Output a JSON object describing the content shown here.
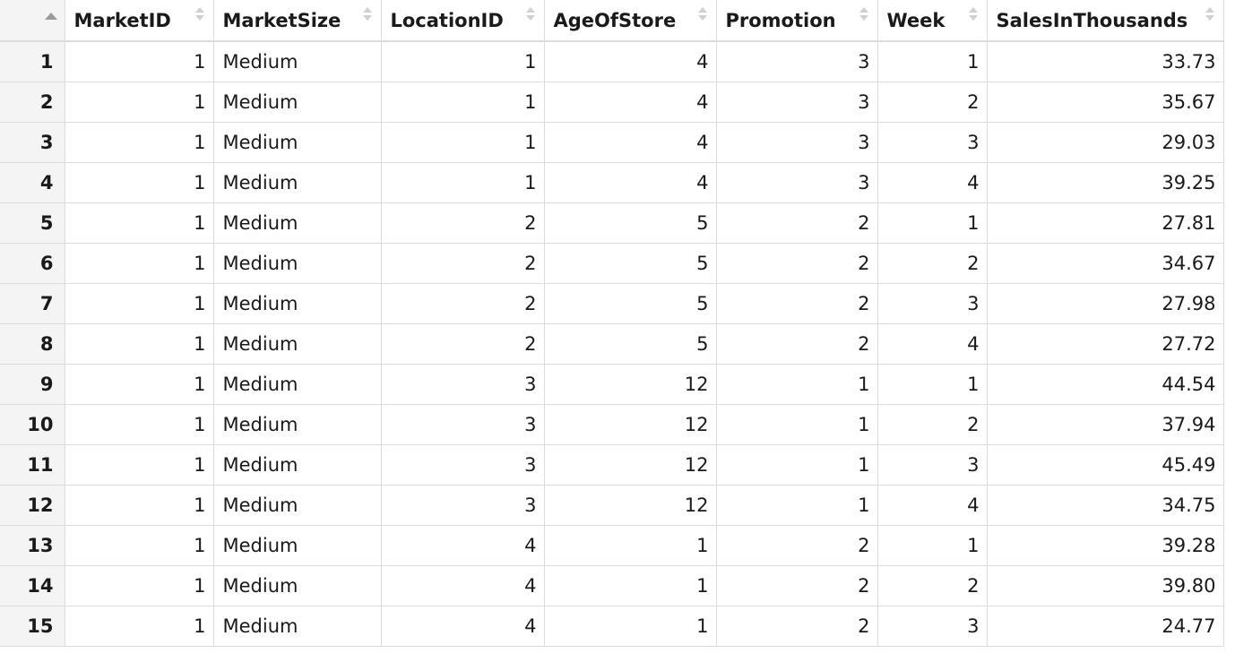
{
  "table": {
    "columns": [
      "MarketID",
      "MarketSize",
      "LocationID",
      "AgeOfStore",
      "Promotion",
      "Week",
      "SalesInThousands"
    ],
    "rows": [
      {
        "index": "1",
        "cells": [
          "1",
          "Medium",
          "1",
          "4",
          "3",
          "1",
          "33.73"
        ]
      },
      {
        "index": "2",
        "cells": [
          "1",
          "Medium",
          "1",
          "4",
          "3",
          "2",
          "35.67"
        ]
      },
      {
        "index": "3",
        "cells": [
          "1",
          "Medium",
          "1",
          "4",
          "3",
          "3",
          "29.03"
        ]
      },
      {
        "index": "4",
        "cells": [
          "1",
          "Medium",
          "1",
          "4",
          "3",
          "4",
          "39.25"
        ]
      },
      {
        "index": "5",
        "cells": [
          "1",
          "Medium",
          "2",
          "5",
          "2",
          "1",
          "27.81"
        ]
      },
      {
        "index": "6",
        "cells": [
          "1",
          "Medium",
          "2",
          "5",
          "2",
          "2",
          "34.67"
        ]
      },
      {
        "index": "7",
        "cells": [
          "1",
          "Medium",
          "2",
          "5",
          "2",
          "3",
          "27.98"
        ]
      },
      {
        "index": "8",
        "cells": [
          "1",
          "Medium",
          "2",
          "5",
          "2",
          "4",
          "27.72"
        ]
      },
      {
        "index": "9",
        "cells": [
          "1",
          "Medium",
          "3",
          "12",
          "1",
          "1",
          "44.54"
        ]
      },
      {
        "index": "10",
        "cells": [
          "1",
          "Medium",
          "3",
          "12",
          "1",
          "2",
          "37.94"
        ]
      },
      {
        "index": "11",
        "cells": [
          "1",
          "Medium",
          "3",
          "12",
          "1",
          "3",
          "45.49"
        ]
      },
      {
        "index": "12",
        "cells": [
          "1",
          "Medium",
          "3",
          "12",
          "1",
          "4",
          "34.75"
        ]
      },
      {
        "index": "13",
        "cells": [
          "1",
          "Medium",
          "4",
          "1",
          "2",
          "1",
          "39.28"
        ]
      },
      {
        "index": "14",
        "cells": [
          "1",
          "Medium",
          "4",
          "1",
          "2",
          "2",
          "39.80"
        ]
      },
      {
        "index": "15",
        "cells": [
          "1",
          "Medium",
          "4",
          "1",
          "2",
          "3",
          "24.77"
        ]
      }
    ]
  },
  "icons": {
    "index_sort": "sort-ascending-icon",
    "column_sort": "sort-toggle-icon"
  }
}
